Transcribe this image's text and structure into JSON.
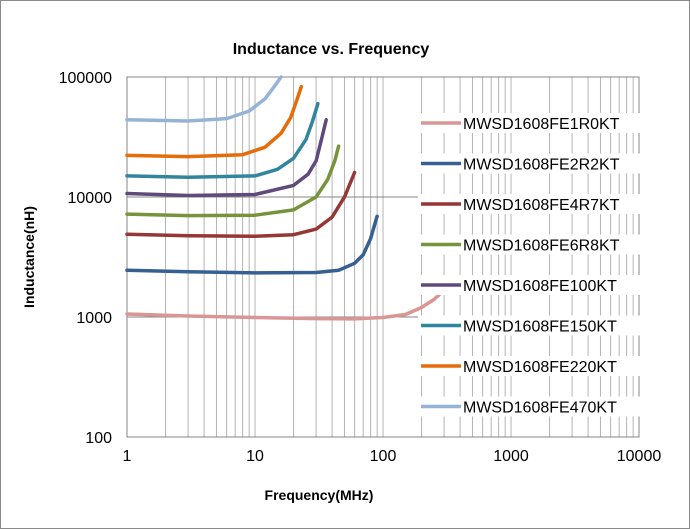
{
  "chart_data": {
    "type": "line",
    "title": "Inductance vs. Frequency",
    "xlabel": "Frequency(MHz)",
    "ylabel": "Inductance(nH)",
    "xscale": "log",
    "yscale": "log",
    "xlim": [
      1,
      10000
    ],
    "ylim": [
      100,
      100000
    ],
    "x_ticks": [
      "1",
      "10",
      "100",
      "1000",
      "10000"
    ],
    "y_ticks": [
      "100",
      "1000",
      "10000",
      "100000"
    ],
    "grid": "vertical minor and major lines, horizontal major lines",
    "legend_position": "right",
    "series": [
      {
        "name": "MWSD1608FE1R0KT",
        "color": "#d99694",
        "points": [
          [
            1,
            1060
          ],
          [
            3,
            1020
          ],
          [
            10,
            990
          ],
          [
            30,
            970
          ],
          [
            60,
            965
          ],
          [
            100,
            990
          ],
          [
            150,
            1050
          ],
          [
            200,
            1200
          ],
          [
            250,
            1400
          ],
          [
            290,
            1620
          ]
        ]
      },
      {
        "name": "MWSD1608FE2R2KT",
        "color": "#376092",
        "points": [
          [
            1,
            2450
          ],
          [
            3,
            2380
          ],
          [
            10,
            2330
          ],
          [
            30,
            2350
          ],
          [
            45,
            2450
          ],
          [
            60,
            2800
          ],
          [
            70,
            3300
          ],
          [
            80,
            4500
          ],
          [
            90,
            6900
          ]
        ]
      },
      {
        "name": "MWSD1608FE4R7KT",
        "color": "#953735",
        "points": [
          [
            1,
            4900
          ],
          [
            3,
            4750
          ],
          [
            10,
            4700
          ],
          [
            20,
            4850
          ],
          [
            30,
            5400
          ],
          [
            40,
            6800
          ],
          [
            50,
            10000
          ],
          [
            60,
            16000
          ]
        ]
      },
      {
        "name": "MWSD1608FE6R8KT",
        "color": "#77933c",
        "points": [
          [
            1,
            7200
          ],
          [
            3,
            7000
          ],
          [
            10,
            7050
          ],
          [
            20,
            7800
          ],
          [
            30,
            10000
          ],
          [
            37,
            14000
          ],
          [
            42,
            20000
          ],
          [
            45,
            26500
          ]
        ]
      },
      {
        "name": "MWSD1608FE100KT",
        "color": "#604a7b",
        "points": [
          [
            1,
            10700
          ],
          [
            3,
            10300
          ],
          [
            10,
            10500
          ],
          [
            20,
            12500
          ],
          [
            26,
            15500
          ],
          [
            30,
            20000
          ],
          [
            33,
            30000
          ],
          [
            36,
            44000
          ]
        ]
      },
      {
        "name": "MWSD1608FE150KT",
        "color": "#31859c",
        "points": [
          [
            1,
            15000
          ],
          [
            3,
            14600
          ],
          [
            10,
            15000
          ],
          [
            15,
            17000
          ],
          [
            20,
            21000
          ],
          [
            25,
            30000
          ],
          [
            28,
            42000
          ],
          [
            31,
            60000
          ]
        ]
      },
      {
        "name": "MWSD1608FE220KT",
        "color": "#e46c0a",
        "points": [
          [
            1,
            22200
          ],
          [
            3,
            21700
          ],
          [
            8,
            22500
          ],
          [
            12,
            26000
          ],
          [
            16,
            34000
          ],
          [
            19,
            46000
          ],
          [
            21,
            62000
          ],
          [
            23,
            83000
          ]
        ]
      },
      {
        "name": "MWSD1608FE470KT",
        "color": "#95b3d7",
        "points": [
          [
            1,
            44000
          ],
          [
            3,
            43000
          ],
          [
            6,
            45000
          ],
          [
            9,
            52000
          ],
          [
            12,
            66000
          ],
          [
            14,
            82000
          ],
          [
            16,
            100000
          ]
        ]
      }
    ]
  }
}
